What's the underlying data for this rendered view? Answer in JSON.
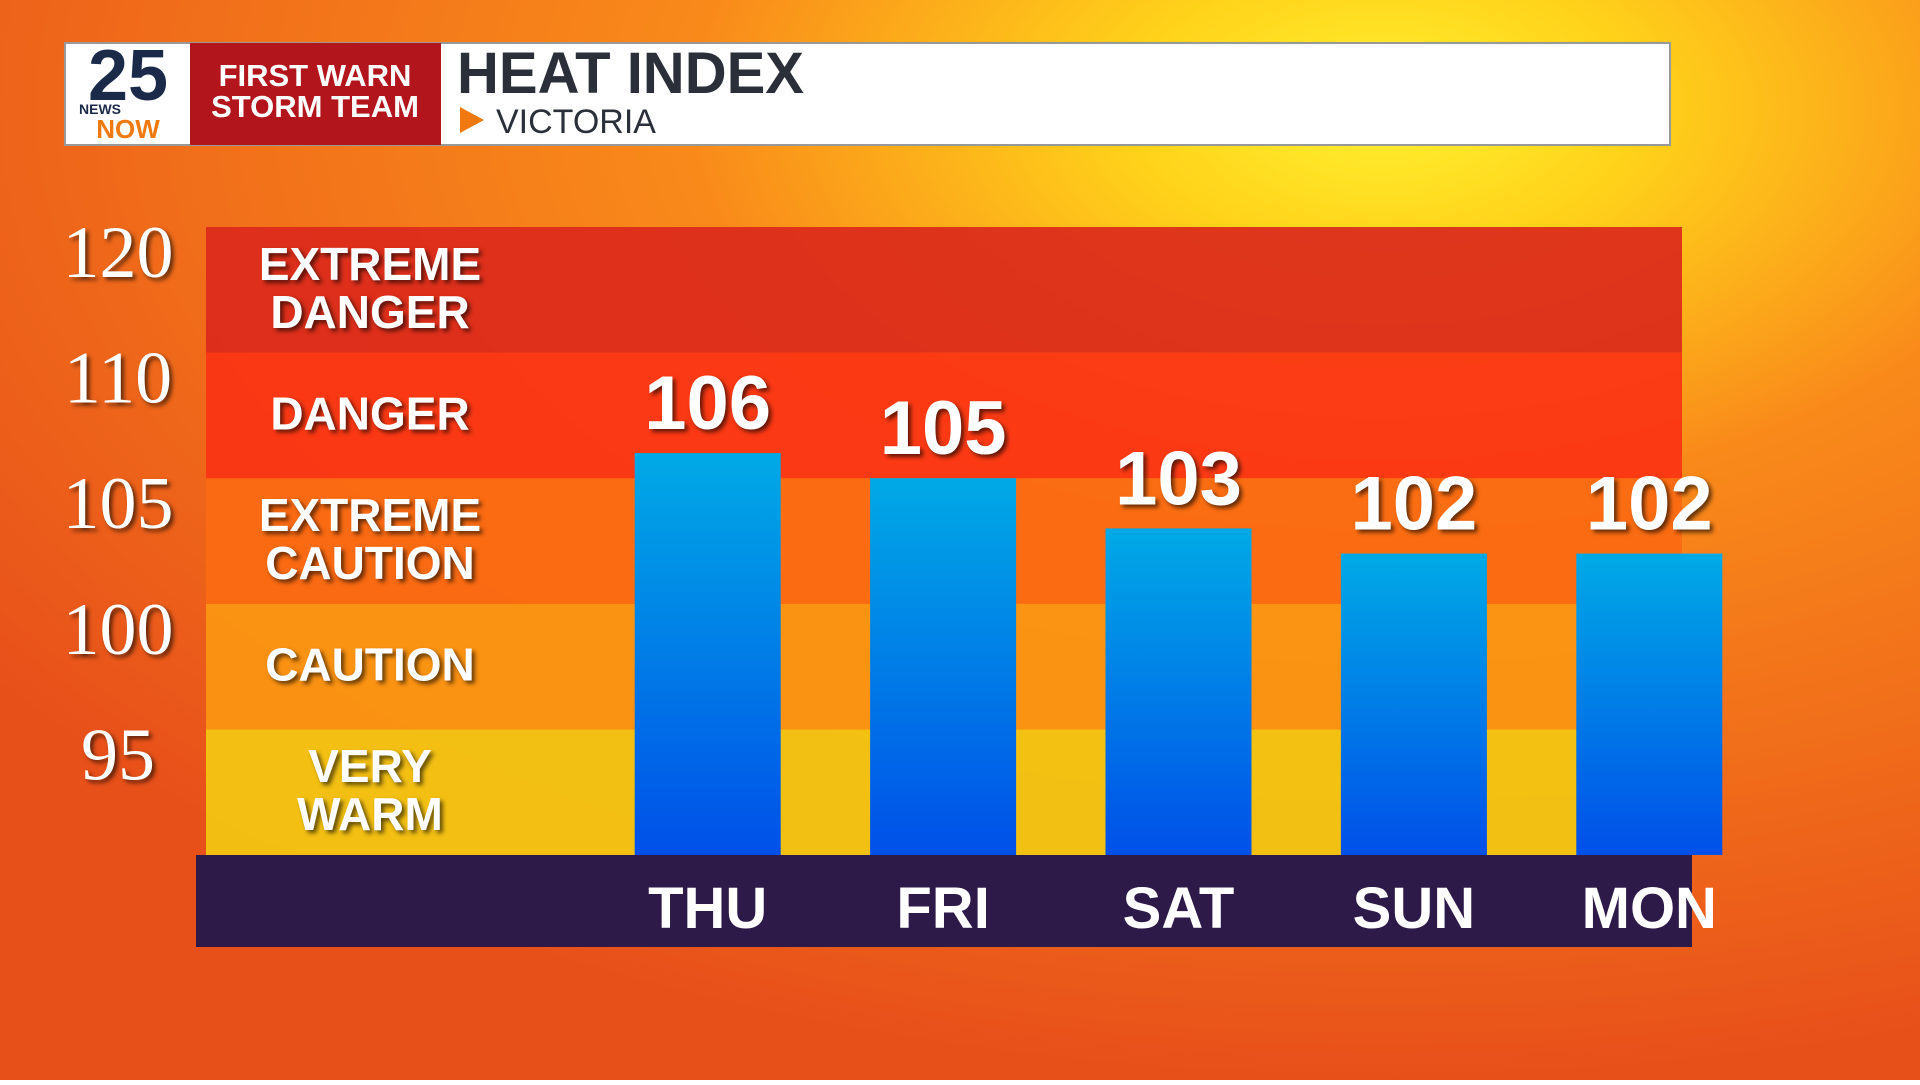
{
  "header": {
    "logo_number": "25",
    "logo_top": "NEWS",
    "logo_bottom": "NOW",
    "team_line1": "FIRST WARN",
    "team_line2": "STORM TEAM"
  },
  "chart_data": {
    "type": "bar",
    "title": "HEAT INDEX",
    "subtitle": "VICTORIA",
    "categories": [
      "THU",
      "FRI",
      "SAT",
      "SUN",
      "MON"
    ],
    "values": [
      106,
      105,
      103,
      102,
      102
    ],
    "ylim": [
      90,
      120
    ],
    "yticks": [
      120,
      110,
      105,
      100,
      95
    ],
    "bands": [
      {
        "lines": [
          "VERY",
          "WARM"
        ],
        "color": "#f2c712"
      },
      {
        "lines": [
          "CAUTION"
        ],
        "color": "#fb9612"
      },
      {
        "lines": [
          "EXTREME",
          "CAUTION"
        ],
        "color": "#fb6a12"
      },
      {
        "lines": [
          "DANGER"
        ],
        "color": "#fb3414"
      },
      {
        "lines": [
          "EXTREME",
          "DANGER"
        ],
        "color": "#db2a1c"
      }
    ]
  }
}
